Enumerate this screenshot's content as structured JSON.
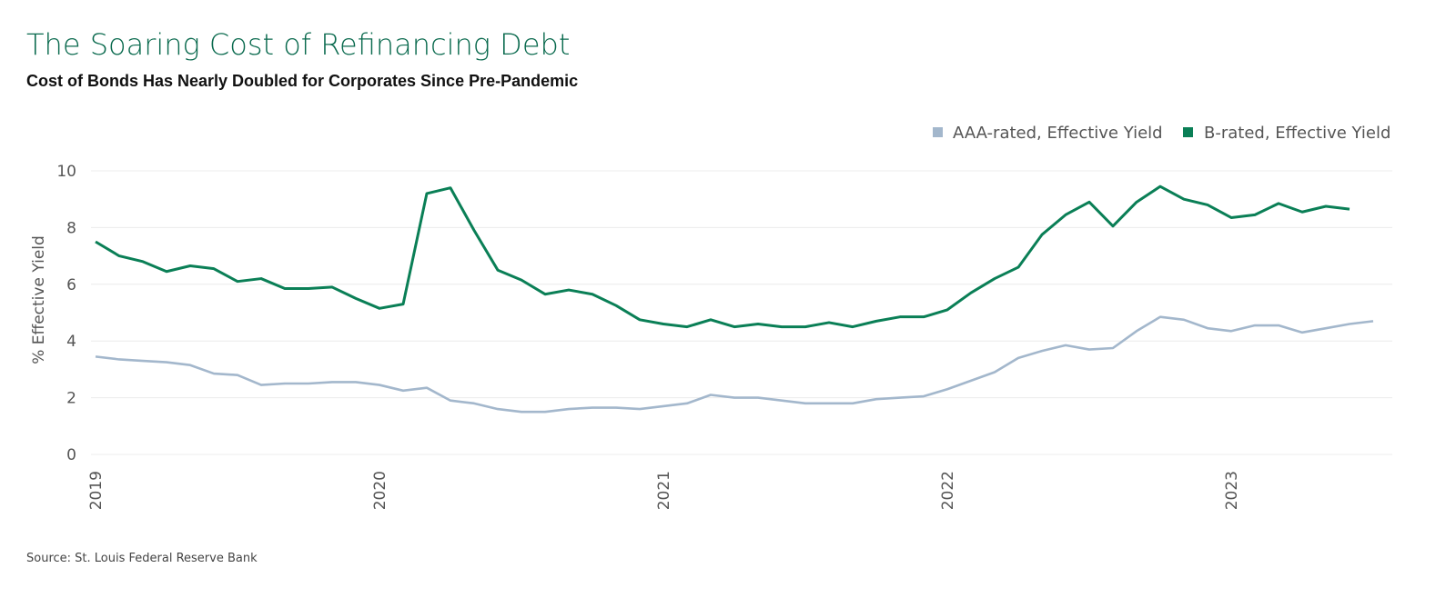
{
  "chart_data": {
    "type": "line",
    "title": "The Soaring Cost of Refinancing Debt",
    "subtitle": "Cost of Bonds Has Nearly Doubled for Corporates Since Pre-Pandemic",
    "y_label": "% Effective Yield",
    "source": "Source: St. Louis Federal Reserve Bank",
    "legend": "top-right",
    "grid": true,
    "ylim": [
      0,
      10
    ],
    "yticks": [
      0,
      2,
      4,
      6,
      8,
      10
    ],
    "categories": [
      "2019",
      null,
      null,
      null,
      null,
      null,
      null,
      null,
      null,
      null,
      null,
      null,
      "2020",
      null,
      null,
      null,
      null,
      null,
      null,
      null,
      null,
      null,
      null,
      null,
      "2021",
      null,
      null,
      null,
      null,
      null,
      null,
      null,
      null,
      null,
      null,
      null,
      "2022",
      null,
      null,
      null,
      null,
      null,
      null,
      null,
      null,
      null,
      null,
      null,
      "2023",
      null,
      null,
      null,
      null,
      null,
      null
    ],
    "series": [
      {
        "name": "AAA-rated, Effective Yield",
        "color": "#a3b7cc",
        "values": [
          3.45,
          3.35,
          3.3,
          3.25,
          3.15,
          2.85,
          2.8,
          2.45,
          2.5,
          2.5,
          2.55,
          2.55,
          2.45,
          2.25,
          2.35,
          1.9,
          1.8,
          1.6,
          1.5,
          1.5,
          1.6,
          1.65,
          1.65,
          1.6,
          1.7,
          1.8,
          2.1,
          2.0,
          2.0,
          1.9,
          1.8,
          1.8,
          1.8,
          1.95,
          2.0,
          2.05,
          2.3,
          2.6,
          2.9,
          3.4,
          3.65,
          3.85,
          3.7,
          3.75,
          4.35,
          4.85,
          4.75,
          4.45,
          4.35,
          4.55,
          4.55,
          4.3,
          4.45,
          4.6,
          4.7
        ]
      },
      {
        "name": "B-rated, Effective Yield",
        "color": "#0a7f56",
        "values": [
          7.5,
          7.0,
          6.8,
          6.45,
          6.65,
          6.55,
          6.1,
          6.2,
          5.85,
          5.85,
          5.9,
          5.5,
          5.15,
          5.3,
          9.2,
          9.4,
          7.9,
          6.5,
          6.15,
          5.65,
          5.8,
          5.65,
          5.25,
          4.75,
          4.6,
          4.5,
          4.75,
          4.5,
          4.6,
          4.5,
          4.5,
          4.65,
          4.5,
          4.7,
          4.85,
          4.85,
          5.1,
          5.7,
          6.2,
          6.6,
          7.75,
          8.45,
          8.9,
          8.05,
          8.9,
          9.45,
          9.0,
          8.8,
          8.35,
          8.45,
          8.85,
          8.55,
          8.75,
          8.65,
          null
        ]
      }
    ]
  }
}
